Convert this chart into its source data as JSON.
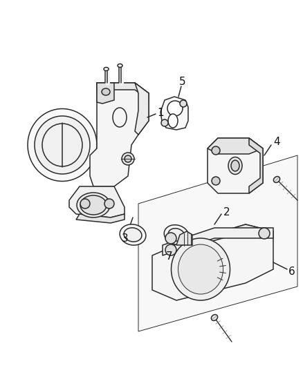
{
  "bg_color": "#ffffff",
  "line_color": "#2a2a2a",
  "label_color": "#111111",
  "label_fontsize": 11,
  "figsize": [
    4.39,
    5.33
  ],
  "dpi": 100
}
